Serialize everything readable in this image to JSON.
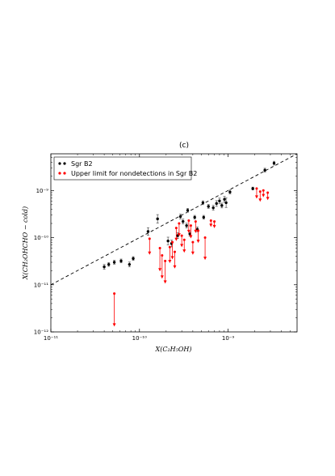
{
  "chart_data": {
    "type": "scatter",
    "panel_label": "(c)",
    "title": "",
    "xlabel": "X(C₂H₅OH)",
    "ylabel": "X(CH₂OHCHO − cold)",
    "xscale": "log",
    "yscale": "log",
    "xlim": [
      1e-11,
      6e-09
    ],
    "ylim": [
      1e-12,
      6e-09
    ],
    "x_ticks": [
      {
        "value": 1e-11,
        "label": "10⁻¹¹"
      },
      {
        "value": 1e-10,
        "label": "10⁻¹⁰"
      },
      {
        "value": 1e-09,
        "label": "10⁻⁹"
      }
    ],
    "y_ticks": [
      {
        "value": 1e-12,
        "label": "10⁻¹²"
      },
      {
        "value": 1e-11,
        "label": "10⁻¹¹"
      },
      {
        "value": 1e-10,
        "label": "10⁻¹⁰"
      },
      {
        "value": 1e-09,
        "label": "10⁻⁹"
      }
    ],
    "grid": false,
    "legend_position": "top-left",
    "reference_line": {
      "style": "dashed",
      "color": "#000000",
      "relation": "y = x"
    },
    "series": [
      {
        "name": "Sgr B2",
        "color": "#000000",
        "marker": "circle",
        "points": [
          {
            "x": 4e-11,
            "y": 2.4e-11,
            "err": 0.05
          },
          {
            "x": 4.5e-11,
            "y": 2.7e-11,
            "err": 0.04
          },
          {
            "x": 5.2e-11,
            "y": 3e-11,
            "err": 0.04
          },
          {
            "x": 6.2e-11,
            "y": 3.2e-11,
            "err": 0.04
          },
          {
            "x": 7.7e-11,
            "y": 2.7e-11,
            "err": 0.05
          },
          {
            "x": 8.5e-11,
            "y": 3.6e-11,
            "err": 0.04
          },
          {
            "x": 1.25e-10,
            "y": 1.35e-10,
            "err": 0.08
          },
          {
            "x": 1.6e-10,
            "y": 2.5e-10,
            "err": 0.09
          },
          {
            "x": 2.1e-10,
            "y": 8.5e-11,
            "err": 0.08
          },
          {
            "x": 2.3e-10,
            "y": 7.5e-11,
            "err": 0.07
          },
          {
            "x": 2.7e-10,
            "y": 1.1e-10,
            "err": 0.06
          },
          {
            "x": 2.9e-10,
            "y": 2.8e-10,
            "err": 0.05
          },
          {
            "x": 3.1e-10,
            "y": 2.2e-10,
            "err": 0.05
          },
          {
            "x": 3.4e-10,
            "y": 1.8e-10,
            "err": 0.05
          },
          {
            "x": 3.5e-10,
            "y": 3.8e-10,
            "err": 0.04
          },
          {
            "x": 3.7e-10,
            "y": 1.2e-10,
            "err": 0.05
          },
          {
            "x": 4.2e-10,
            "y": 2.7e-10,
            "err": 0.04
          },
          {
            "x": 4.5e-10,
            "y": 1.5e-10,
            "err": 0.05
          },
          {
            "x": 5.2e-10,
            "y": 5.5e-10,
            "err": 0.04
          },
          {
            "x": 5.3e-10,
            "y": 2.7e-10,
            "err": 0.04
          },
          {
            "x": 6e-10,
            "y": 4.6e-10,
            "err": 0.04
          },
          {
            "x": 6.8e-10,
            "y": 4.3e-10,
            "err": 0.05
          },
          {
            "x": 7.4e-10,
            "y": 5.3e-10,
            "err": 0.06
          },
          {
            "x": 8e-10,
            "y": 6e-10,
            "err": 0.06
          },
          {
            "x": 8.5e-10,
            "y": 4.8e-10,
            "err": 0.05
          },
          {
            "x": 9.1e-10,
            "y": 6.5e-10,
            "err": 0.06
          },
          {
            "x": 9.5e-10,
            "y": 5.5e-10,
            "err": 0.1
          },
          {
            "x": 1.05e-09,
            "y": 9.3e-10,
            "err": 0.04
          },
          {
            "x": 1.9e-09,
            "y": 1.1e-09,
            "err": 0.03
          },
          {
            "x": 2.6e-09,
            "y": 2.7e-09,
            "err": 0.04
          },
          {
            "x": 3.3e-09,
            "y": 3.8e-09,
            "err": 0.04
          }
        ]
      },
      {
        "name": "Upper limit for nondetections in Sgr B2",
        "color": "#ff0000",
        "marker": "circle",
        "upper_limits": [
          {
            "x": 5.2e-11,
            "y": 6.5e-12,
            "to": 1.35e-12
          },
          {
            "x": 1.3e-10,
            "y": 9.5e-11,
            "to": 4.5e-11
          },
          {
            "x": 1.7e-10,
            "y": 6e-11,
            "to": 2e-11
          },
          {
            "x": 1.8e-10,
            "y": 4.2e-11,
            "to": 1.4e-11
          },
          {
            "x": 1.95e-10,
            "y": 3.2e-11,
            "to": 1.1e-11
          },
          {
            "x": 2.2e-10,
            "y": 6.3e-11,
            "to": 3e-11
          },
          {
            "x": 2.35e-10,
            "y": 8e-11,
            "to": 3.6e-11
          },
          {
            "x": 2.5e-10,
            "y": 5e-11,
            "to": 2.3e-11
          },
          {
            "x": 2.6e-10,
            "y": 1.6e-10,
            "to": 8.8e-11
          },
          {
            "x": 2.8e-10,
            "y": 2e-10,
            "to": 1.1e-10
          },
          {
            "x": 3e-10,
            "y": 1.1e-10,
            "to": 6.5e-11
          },
          {
            "x": 3.2e-10,
            "y": 9e-11,
            "to": 5e-11
          },
          {
            "x": 3.6e-10,
            "y": 2.3e-10,
            "to": 1.3e-10
          },
          {
            "x": 3.8e-10,
            "y": 1.8e-10,
            "to": 1e-10
          },
          {
            "x": 4e-10,
            "y": 8e-11,
            "to": 4.5e-11
          },
          {
            "x": 4.3e-10,
            "y": 2.2e-10,
            "to": 1.3e-10
          },
          {
            "x": 4.6e-10,
            "y": 1.4e-10,
            "to": 8e-11
          },
          {
            "x": 5.5e-10,
            "y": 1e-10,
            "to": 3.5e-11
          },
          {
            "x": 6.4e-10,
            "y": 2.3e-10,
            "to": 1.75e-10
          },
          {
            "x": 7e-10,
            "y": 2.2e-10,
            "to": 1.65e-10
          },
          {
            "x": 2.1e-09,
            "y": 1.1e-09,
            "to": 7e-10
          },
          {
            "x": 2.3e-09,
            "y": 9.5e-10,
            "to": 6e-10
          },
          {
            "x": 2.5e-09,
            "y": 1e-09,
            "to": 7.5e-10
          },
          {
            "x": 2.8e-09,
            "y": 9e-10,
            "to": 6.5e-10
          }
        ]
      }
    ]
  }
}
